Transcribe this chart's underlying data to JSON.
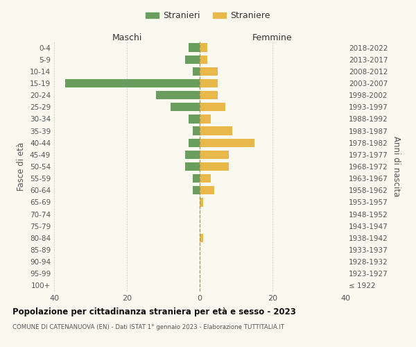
{
  "age_groups": [
    "100+",
    "95-99",
    "90-94",
    "85-89",
    "80-84",
    "75-79",
    "70-74",
    "65-69",
    "60-64",
    "55-59",
    "50-54",
    "45-49",
    "40-44",
    "35-39",
    "30-34",
    "25-29",
    "20-24",
    "15-19",
    "10-14",
    "5-9",
    "0-4"
  ],
  "birth_years": [
    "≤ 1922",
    "1923-1927",
    "1928-1932",
    "1933-1937",
    "1938-1942",
    "1943-1947",
    "1948-1952",
    "1953-1957",
    "1958-1962",
    "1963-1967",
    "1968-1972",
    "1973-1977",
    "1978-1982",
    "1983-1987",
    "1988-1992",
    "1993-1997",
    "1998-2002",
    "2003-2007",
    "2008-2012",
    "2013-2017",
    "2018-2022"
  ],
  "stranieri": [
    0,
    0,
    0,
    0,
    0,
    0,
    0,
    0,
    2,
    2,
    4,
    4,
    3,
    2,
    3,
    8,
    12,
    37,
    2,
    4,
    3
  ],
  "straniere": [
    0,
    0,
    0,
    0,
    1,
    0,
    0,
    1,
    4,
    3,
    8,
    8,
    15,
    9,
    3,
    7,
    5,
    5,
    5,
    2,
    2
  ],
  "color_stranieri": "#6a9e5e",
  "color_straniere": "#e8b84b",
  "xlim": 40,
  "title": "Popolazione per cittadinanza straniera per età e sesso - 2023",
  "subtitle": "COMUNE DI CATENANUOVA (EN) - Dati ISTAT 1° gennaio 2023 - Elaborazione TUTTITALIA.IT",
  "ylabel_left": "Fasce di età",
  "ylabel_right": "Anni di nascita",
  "legend_stranieri": "Stranieri",
  "legend_straniere": "Straniere",
  "header_maschi": "Maschi",
  "header_femmine": "Femmine",
  "bg_color": "#f9f9f0",
  "grid_color": "#cccccc"
}
